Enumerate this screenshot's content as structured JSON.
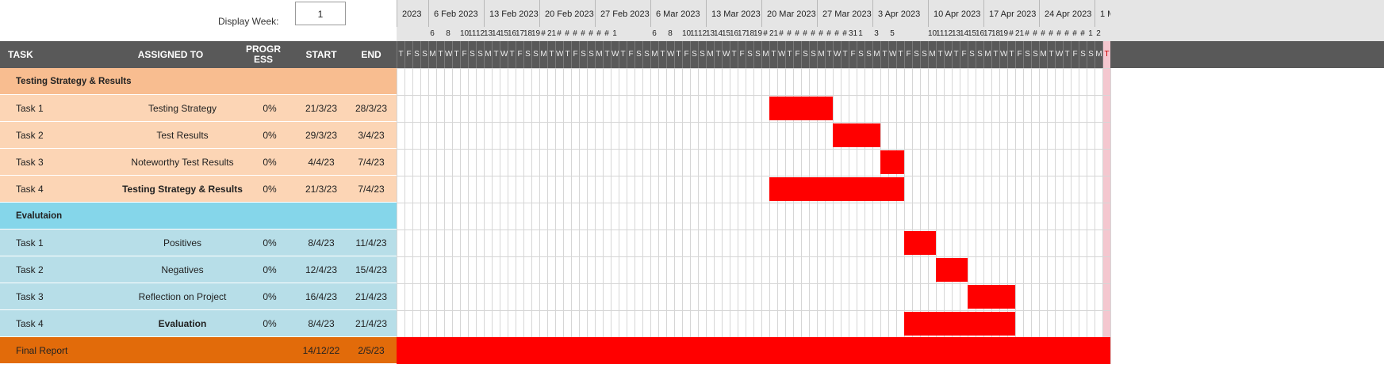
{
  "controls": {
    "display_week_label": "Display Week:",
    "display_week_value": "1"
  },
  "columns": {
    "task": "TASK",
    "assigned": "ASSIGNED TO",
    "progress": "PROGRESS",
    "start": "START",
    "end": "END"
  },
  "weeks": [
    {
      "label": "2023",
      "start_day": 0
    },
    {
      "label": "6 Feb 2023",
      "start_day": 4
    },
    {
      "label": "13 Feb 2023",
      "start_day": 11
    },
    {
      "label": "20 Feb 2023",
      "start_day": 18
    },
    {
      "label": "27 Feb 2023",
      "start_day": 25
    },
    {
      "label": "6 Mar 2023",
      "start_day": 32
    },
    {
      "label": "13 Mar 2023",
      "start_day": 39
    },
    {
      "label": "20 Mar 2023",
      "start_day": 46
    },
    {
      "label": "27 Mar 2023",
      "start_day": 53
    },
    {
      "label": "3 Apr 2023",
      "start_day": 60
    },
    {
      "label": "10 Apr 2023",
      "start_day": 67
    },
    {
      "label": "17 Apr 2023",
      "start_day": 74
    },
    {
      "label": "24 Apr 2023",
      "start_day": 81
    },
    {
      "label": "1 M",
      "start_day": 88
    }
  ],
  "day_numbers": [
    "",
    "",
    "",
    "",
    "6",
    "",
    "8",
    "",
    "10",
    "11",
    "12",
    "13",
    "14",
    "15",
    "16",
    "17",
    "18",
    "19",
    "#",
    "21",
    "#",
    "#",
    "#",
    "#",
    "#",
    "#",
    "#",
    "1",
    "",
    "",
    "",
    "",
    "6",
    "",
    "8",
    "",
    "10",
    "11",
    "12",
    "13",
    "14",
    "15",
    "16",
    "17",
    "18",
    "19",
    "#",
    "21",
    "#",
    "#",
    "#",
    "#",
    "#",
    "#",
    "#",
    "#",
    "#",
    "31",
    "1",
    "",
    "3",
    "",
    "5",
    "",
    "",
    "",
    "",
    "10",
    "11",
    "12",
    "13",
    "14",
    "15",
    "16",
    "17",
    "18",
    "19",
    "#",
    "21",
    "#",
    "#",
    "#",
    "#",
    "#",
    "#",
    "#",
    "#",
    "1",
    "2"
  ],
  "day_letters": [
    "T",
    "F",
    "S",
    "S",
    "M",
    "T",
    "W",
    "T",
    "F",
    "S",
    "S",
    "M",
    "T",
    "W",
    "T",
    "F",
    "S",
    "S",
    "M",
    "T",
    "W",
    "T",
    "F",
    "S",
    "S",
    "M",
    "T",
    "W",
    "T",
    "F",
    "S",
    "S",
    "M",
    "T",
    "W",
    "T",
    "F",
    "S",
    "S",
    "M",
    "T",
    "W",
    "T",
    "F",
    "S",
    "S",
    "M",
    "T",
    "W",
    "T",
    "F",
    "S",
    "S",
    "M",
    "T",
    "W",
    "T",
    "F",
    "S",
    "S",
    "M",
    "T",
    "W",
    "T",
    "F",
    "S",
    "S",
    "M",
    "T",
    "W",
    "T",
    "F",
    "S",
    "S",
    "M",
    "T",
    "W",
    "T",
    "F",
    "S",
    "S",
    "M",
    "T",
    "W",
    "T",
    "F",
    "S",
    "S",
    "M",
    "T"
  ],
  "today_index": 89,
  "colors": {
    "header_dark": "#595959",
    "header_light": "#e5e5e5",
    "section1": "#f8bd90",
    "section1_rows": "#fcd5b5",
    "section2": "#85d6ea",
    "section2_rows": "#b7dee8",
    "final": "#e26b0a",
    "bar": "#ff0000",
    "today": "#f4c7cf"
  },
  "rows": [
    {
      "kind": "section",
      "task": "Testing Strategy & Results",
      "assigned": "",
      "progress": "",
      "start": "",
      "end": "",
      "color": "#f8bd90"
    },
    {
      "kind": "task",
      "task": "Task 1",
      "assigned": "Testing Strategy",
      "progress": "0%",
      "start": "21/3/23",
      "end": "28/3/23",
      "color": "#fcd5b5",
      "bar": {
        "from_day": 47,
        "to_day": 55
      }
    },
    {
      "kind": "task",
      "task": "Task 2",
      "assigned": "Test Results",
      "progress": "0%",
      "start": "29/3/23",
      "end": "3/4/23",
      "color": "#fcd5b5",
      "bar": {
        "from_day": 55,
        "to_day": 61
      }
    },
    {
      "kind": "task",
      "task": "Task 3",
      "assigned": "Noteworthy Test Results",
      "progress": "0%",
      "start": "4/4/23",
      "end": "7/4/23",
      "color": "#fcd5b5",
      "bar": {
        "from_day": 61,
        "to_day": 64
      }
    },
    {
      "kind": "task",
      "task": "Task 4",
      "assigned": "Testing Strategy & Results",
      "assigned_bold": true,
      "progress": "0%",
      "start": "21/3/23",
      "end": "7/4/23",
      "color": "#fcd5b5",
      "bar": {
        "from_day": 47,
        "to_day": 64
      }
    },
    {
      "kind": "section",
      "task": "Evalutaion",
      "assigned": "",
      "progress": "",
      "start": "",
      "end": "",
      "color": "#85d6ea"
    },
    {
      "kind": "task",
      "task": "Task 1",
      "assigned": "Positives",
      "progress": "0%",
      "start": "8/4/23",
      "end": "11/4/23",
      "color": "#b7dee8",
      "bar": {
        "from_day": 64,
        "to_day": 68
      }
    },
    {
      "kind": "task",
      "task": "Task 2",
      "assigned": "Negatives",
      "progress": "0%",
      "start": "12/4/23",
      "end": "15/4/23",
      "color": "#b7dee8",
      "bar": {
        "from_day": 68,
        "to_day": 72
      }
    },
    {
      "kind": "task",
      "task": "Task 3",
      "assigned": "Reflection on Project",
      "progress": "0%",
      "start": "16/4/23",
      "end": "21/4/23",
      "color": "#b7dee8",
      "bar": {
        "from_day": 72,
        "to_day": 78
      }
    },
    {
      "kind": "task",
      "task": "Task 4",
      "assigned": "Evaluation",
      "assigned_bold": true,
      "progress": "0%",
      "start": "8/4/23",
      "end": "21/4/23",
      "color": "#b7dee8",
      "bar": {
        "from_day": 64,
        "to_day": 78
      }
    },
    {
      "kind": "final",
      "task": "Final Report",
      "assigned": "",
      "progress": "",
      "start": "14/12/22",
      "end": "2/5/23",
      "color": "#e26b0a",
      "bar": {
        "from_day": 0,
        "to_day": 90
      }
    }
  ]
}
